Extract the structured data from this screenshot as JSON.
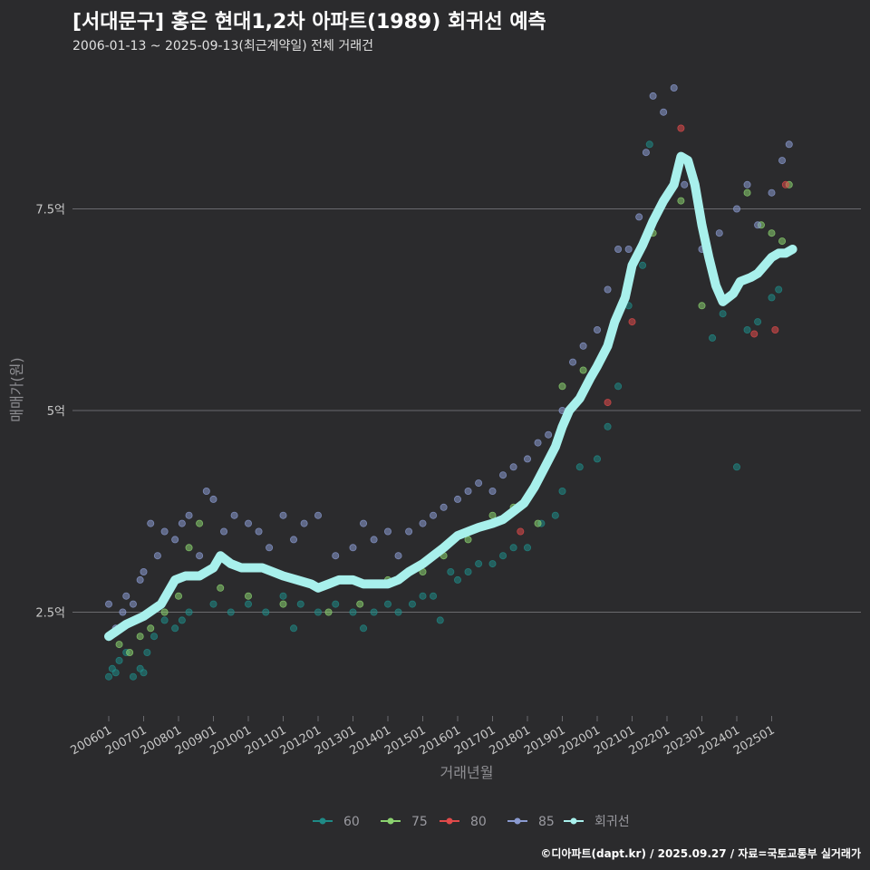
{
  "title": "[서대문구] 홍은 현대1,2차 아파트(1989) 회귀선 예측",
  "subtitle": "2006-01-13 ~ 2025-09-13(최근계약일) 전체 거래건",
  "credit": "©디아파트(dapt.kr) / 2025.09.27 / 자료=국토교통부 실거래가",
  "colors": {
    "background": "#2b2b2d",
    "grid": "#6a6a6e",
    "s60": "#1f8a86",
    "s75": "#8bd26f",
    "s80": "#e04a4a",
    "s85": "#8a9ad0",
    "trend": "#a8f0ec"
  },
  "chart_data": {
    "type": "scatter",
    "title": "[서대문구] 홍은 현대1,2차 아파트(1989) 회귀선 예측",
    "xlabel": "거래년월",
    "ylabel": "매매가(원)",
    "xlim": [
      2006.0,
      2025.75
    ],
    "ylim": [
      1.25,
      9.2
    ],
    "yticks": [
      {
        "value": 2.5,
        "label": "2.5억"
      },
      {
        "value": 5,
        "label": "5억"
      },
      {
        "value": 7.5,
        "label": "7.5억"
      }
    ],
    "xticks": [
      "200601",
      "200701",
      "200801",
      "200901",
      "201001",
      "201101",
      "201201",
      "201301",
      "201401",
      "201501",
      "201601",
      "201701",
      "201801",
      "201901",
      "202001",
      "202101",
      "202201",
      "202301",
      "202401",
      "202501"
    ],
    "legend": [
      {
        "key": "60",
        "label": "60"
      },
      {
        "key": "75",
        "label": "75"
      },
      {
        "key": "80",
        "label": "80"
      },
      {
        "key": "85",
        "label": "85"
      },
      {
        "key": "trend",
        "label": "회귀선"
      }
    ],
    "series": [
      {
        "name": "60",
        "points": [
          [
            2006.0,
            1.7
          ],
          [
            2006.1,
            1.8
          ],
          [
            2006.2,
            1.75
          ],
          [
            2006.3,
            1.9
          ],
          [
            2006.5,
            2.0
          ],
          [
            2006.7,
            1.7
          ],
          [
            2006.9,
            1.8
          ],
          [
            2007.0,
            1.75
          ],
          [
            2007.1,
            2.0
          ],
          [
            2007.3,
            2.2
          ],
          [
            2007.6,
            2.4
          ],
          [
            2007.9,
            2.3
          ],
          [
            2008.1,
            2.4
          ],
          [
            2008.3,
            2.5
          ],
          [
            2009.0,
            2.6
          ],
          [
            2009.5,
            2.5
          ],
          [
            2010.0,
            2.6
          ],
          [
            2010.5,
            2.5
          ],
          [
            2011.0,
            2.7
          ],
          [
            2011.3,
            2.3
          ],
          [
            2011.5,
            2.6
          ],
          [
            2012.0,
            2.5
          ],
          [
            2012.5,
            2.6
          ],
          [
            2013.0,
            2.5
          ],
          [
            2013.3,
            2.3
          ],
          [
            2013.6,
            2.5
          ],
          [
            2014.0,
            2.6
          ],
          [
            2014.3,
            2.5
          ],
          [
            2014.7,
            2.6
          ],
          [
            2015.0,
            2.7
          ],
          [
            2015.3,
            2.7
          ],
          [
            2015.5,
            2.4
          ],
          [
            2015.8,
            3.0
          ],
          [
            2016.0,
            2.9
          ],
          [
            2016.3,
            3.0
          ],
          [
            2016.6,
            3.1
          ],
          [
            2017.0,
            3.1
          ],
          [
            2017.3,
            3.2
          ],
          [
            2017.6,
            3.3
          ],
          [
            2018.0,
            3.3
          ],
          [
            2018.4,
            3.6
          ],
          [
            2018.8,
            3.7
          ],
          [
            2019.0,
            4.0
          ],
          [
            2019.5,
            4.3
          ],
          [
            2020.0,
            4.4
          ],
          [
            2020.3,
            4.8
          ],
          [
            2020.6,
            5.3
          ],
          [
            2020.9,
            6.3
          ],
          [
            2021.3,
            6.8
          ],
          [
            2021.5,
            8.3
          ],
          [
            2023.3,
            5.9
          ],
          [
            2023.6,
            6.2
          ],
          [
            2024.0,
            4.3
          ],
          [
            2024.3,
            6.0
          ],
          [
            2024.6,
            6.1
          ],
          [
            2025.0,
            6.4
          ],
          [
            2025.2,
            6.5
          ]
        ]
      },
      {
        "name": "75",
        "points": [
          [
            2006.3,
            2.1
          ],
          [
            2006.6,
            2.0
          ],
          [
            2006.9,
            2.2
          ],
          [
            2007.2,
            2.3
          ],
          [
            2007.6,
            2.5
          ],
          [
            2008.0,
            2.7
          ],
          [
            2008.3,
            3.3
          ],
          [
            2008.6,
            3.6
          ],
          [
            2009.2,
            2.8
          ],
          [
            2010.0,
            2.7
          ],
          [
            2011.0,
            2.6
          ],
          [
            2012.3,
            2.5
          ],
          [
            2013.2,
            2.6
          ],
          [
            2014.0,
            2.9
          ],
          [
            2015.0,
            3.0
          ],
          [
            2015.6,
            3.2
          ],
          [
            2016.3,
            3.4
          ],
          [
            2017.0,
            3.7
          ],
          [
            2017.6,
            3.8
          ],
          [
            2018.3,
            3.6
          ],
          [
            2019.0,
            5.3
          ],
          [
            2019.6,
            5.5
          ],
          [
            2020.3,
            5.8
          ],
          [
            2021.0,
            6.8
          ],
          [
            2021.6,
            7.2
          ],
          [
            2022.4,
            7.6
          ],
          [
            2023.0,
            6.3
          ],
          [
            2024.0,
            6.5
          ],
          [
            2024.3,
            7.7
          ],
          [
            2024.7,
            7.3
          ],
          [
            2025.0,
            7.2
          ],
          [
            2025.3,
            7.1
          ],
          [
            2025.5,
            7.8
          ]
        ]
      },
      {
        "name": "80",
        "points": [
          [
            2017.8,
            3.5
          ],
          [
            2020.3,
            5.1
          ],
          [
            2021.0,
            6.1
          ],
          [
            2022.4,
            8.5
          ],
          [
            2024.5,
            5.95
          ],
          [
            2025.1,
            6.0
          ],
          [
            2025.4,
            7.8
          ]
        ]
      },
      {
        "name": "85",
        "points": [
          [
            2006.0,
            2.6
          ],
          [
            2006.2,
            2.3
          ],
          [
            2006.4,
            2.5
          ],
          [
            2006.5,
            2.7
          ],
          [
            2006.7,
            2.6
          ],
          [
            2006.9,
            2.9
          ],
          [
            2007.0,
            3.0
          ],
          [
            2007.2,
            3.6
          ],
          [
            2007.4,
            3.2
          ],
          [
            2007.6,
            3.5
          ],
          [
            2007.9,
            3.4
          ],
          [
            2008.1,
            3.6
          ],
          [
            2008.3,
            3.7
          ],
          [
            2008.6,
            3.2
          ],
          [
            2008.8,
            4.0
          ],
          [
            2009.0,
            3.9
          ],
          [
            2009.3,
            3.5
          ],
          [
            2009.6,
            3.7
          ],
          [
            2010.0,
            3.6
          ],
          [
            2010.3,
            3.5
          ],
          [
            2010.6,
            3.3
          ],
          [
            2011.0,
            3.7
          ],
          [
            2011.3,
            3.4
          ],
          [
            2011.6,
            3.6
          ],
          [
            2012.0,
            3.7
          ],
          [
            2012.5,
            3.2
          ],
          [
            2013.0,
            3.3
          ],
          [
            2013.3,
            3.6
          ],
          [
            2013.6,
            3.4
          ],
          [
            2014.0,
            3.5
          ],
          [
            2014.3,
            3.2
          ],
          [
            2014.6,
            3.5
          ],
          [
            2015.0,
            3.6
          ],
          [
            2015.3,
            3.7
          ],
          [
            2015.6,
            3.8
          ],
          [
            2016.0,
            3.9
          ],
          [
            2016.3,
            4.0
          ],
          [
            2016.6,
            4.1
          ],
          [
            2017.0,
            4.0
          ],
          [
            2017.3,
            4.2
          ],
          [
            2017.6,
            4.3
          ],
          [
            2018.0,
            4.4
          ],
          [
            2018.3,
            4.6
          ],
          [
            2018.6,
            4.7
          ],
          [
            2019.0,
            5.0
          ],
          [
            2019.3,
            5.6
          ],
          [
            2019.6,
            5.8
          ],
          [
            2020.0,
            6.0
          ],
          [
            2020.3,
            6.5
          ],
          [
            2020.6,
            7.0
          ],
          [
            2020.9,
            7.0
          ],
          [
            2021.2,
            7.4
          ],
          [
            2021.4,
            8.2
          ],
          [
            2021.6,
            8.9
          ],
          [
            2021.9,
            8.7
          ],
          [
            2022.2,
            9.0
          ],
          [
            2022.5,
            7.8
          ],
          [
            2023.0,
            7.0
          ],
          [
            2023.5,
            7.2
          ],
          [
            2024.0,
            7.5
          ],
          [
            2024.3,
            7.8
          ],
          [
            2024.6,
            7.3
          ],
          [
            2025.0,
            7.7
          ],
          [
            2025.3,
            8.1
          ],
          [
            2025.5,
            8.3
          ]
        ]
      }
    ],
    "trend": [
      [
        2006.0,
        2.2
      ],
      [
        2006.5,
        2.35
      ],
      [
        2007.0,
        2.45
      ],
      [
        2007.5,
        2.6
      ],
      [
        2007.9,
        2.9
      ],
      [
        2008.2,
        2.95
      ],
      [
        2008.6,
        2.95
      ],
      [
        2009.0,
        3.05
      ],
      [
        2009.2,
        3.2
      ],
      [
        2009.5,
        3.1
      ],
      [
        2009.8,
        3.05
      ],
      [
        2010.1,
        3.05
      ],
      [
        2010.4,
        3.05
      ],
      [
        2010.7,
        3.0
      ],
      [
        2011.0,
        2.95
      ],
      [
        2011.4,
        2.9
      ],
      [
        2011.8,
        2.85
      ],
      [
        2012.0,
        2.8
      ],
      [
        2012.3,
        2.85
      ],
      [
        2012.6,
        2.9
      ],
      [
        2013.0,
        2.9
      ],
      [
        2013.3,
        2.85
      ],
      [
        2013.6,
        2.85
      ],
      [
        2014.0,
        2.85
      ],
      [
        2014.3,
        2.9
      ],
      [
        2014.6,
        3.0
      ],
      [
        2015.0,
        3.1
      ],
      [
        2015.3,
        3.2
      ],
      [
        2015.6,
        3.3
      ],
      [
        2016.0,
        3.45
      ],
      [
        2016.3,
        3.5
      ],
      [
        2016.6,
        3.55
      ],
      [
        2017.0,
        3.6
      ],
      [
        2017.3,
        3.65
      ],
      [
        2017.6,
        3.75
      ],
      [
        2017.9,
        3.85
      ],
      [
        2018.2,
        4.05
      ],
      [
        2018.5,
        4.3
      ],
      [
        2018.8,
        4.55
      ],
      [
        2019.0,
        4.8
      ],
      [
        2019.2,
        5.0
      ],
      [
        2019.5,
        5.15
      ],
      [
        2019.8,
        5.4
      ],
      [
        2020.0,
        5.55
      ],
      [
        2020.3,
        5.8
      ],
      [
        2020.5,
        6.1
      ],
      [
        2020.8,
        6.4
      ],
      [
        2021.0,
        6.8
      ],
      [
        2021.3,
        7.05
      ],
      [
        2021.6,
        7.35
      ],
      [
        2021.9,
        7.6
      ],
      [
        2022.2,
        7.8
      ],
      [
        2022.4,
        8.15
      ],
      [
        2022.6,
        8.1
      ],
      [
        2022.8,
        7.8
      ],
      [
        2023.0,
        7.3
      ],
      [
        2023.2,
        6.9
      ],
      [
        2023.4,
        6.55
      ],
      [
        2023.6,
        6.35
      ],
      [
        2023.9,
        6.45
      ],
      [
        2024.1,
        6.6
      ],
      [
        2024.4,
        6.65
      ],
      [
        2024.6,
        6.7
      ],
      [
        2024.8,
        6.8
      ],
      [
        2025.0,
        6.9
      ],
      [
        2025.2,
        6.95
      ],
      [
        2025.4,
        6.95
      ],
      [
        2025.6,
        7.0
      ]
    ]
  }
}
